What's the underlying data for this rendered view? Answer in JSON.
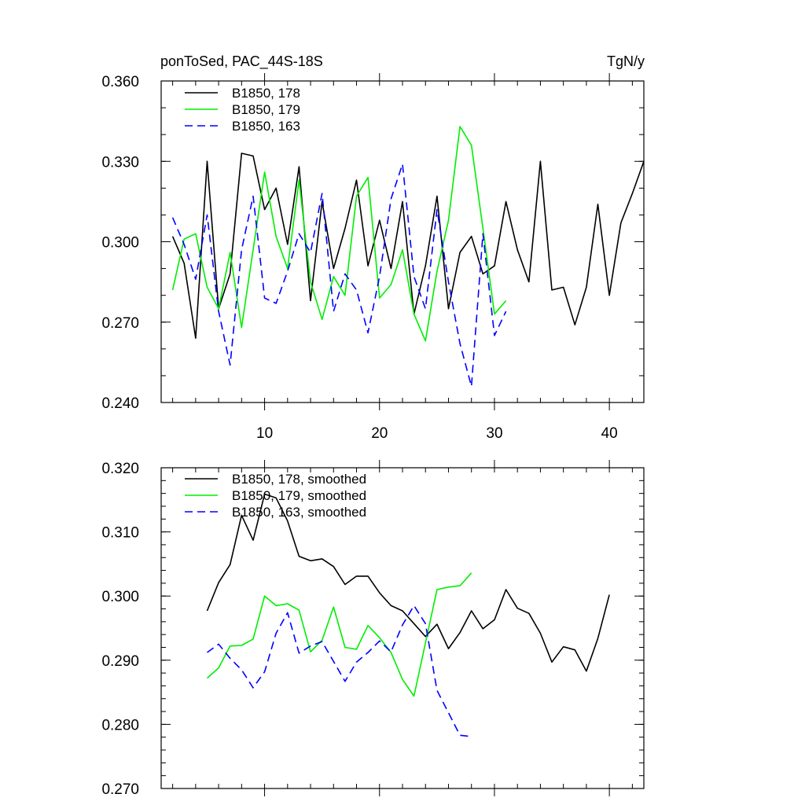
{
  "chart_data": [
    {
      "type": "line",
      "title_left": "ponToSed, PAC_44S-18S",
      "title_right": "TgN/y",
      "xlim": [
        1,
        43
      ],
      "ylim": [
        0.24,
        0.36
      ],
      "x_major_ticks": [
        10,
        20,
        30,
        40
      ],
      "x_tick_labels": [
        "10",
        "20",
        "30",
        "40"
      ],
      "x_minor_step": 2,
      "y_major_ticks": [
        0.24,
        0.27,
        0.3,
        0.33,
        0.36
      ],
      "y_tick_labels": [
        "0.240",
        "0.270",
        "0.300",
        "0.330",
        "0.360"
      ],
      "y_minor_step": 0.01,
      "legend_position": "top-left",
      "series": [
        {
          "name": "B1850, 178",
          "color": "#000000",
          "dash": "solid",
          "x": [
            2,
            3,
            4,
            5,
            6,
            7,
            8,
            9,
            10,
            11,
            12,
            13,
            14,
            15,
            16,
            17,
            18,
            19,
            20,
            21,
            22,
            23,
            24,
            25,
            26,
            27,
            28,
            29,
            30,
            31,
            32,
            33,
            34,
            35,
            36,
            37,
            38,
            39,
            40,
            41,
            42,
            43
          ],
          "values": [
            0.302,
            0.292,
            0.264,
            0.33,
            0.275,
            0.288,
            0.333,
            0.332,
            0.312,
            0.32,
            0.299,
            0.328,
            0.278,
            0.315,
            0.29,
            0.305,
            0.323,
            0.291,
            0.308,
            0.29,
            0.315,
            0.273,
            0.291,
            0.317,
            0.275,
            0.296,
            0.302,
            0.288,
            0.291,
            0.315,
            0.297,
            0.285,
            0.33,
            0.282,
            0.283,
            0.269,
            0.283,
            0.314,
            0.28,
            0.307,
            0.318,
            0.33
          ]
        },
        {
          "name": "B1850, 179",
          "color": "#00ee00",
          "dash": "solid",
          "x": [
            2,
            3,
            4,
            5,
            6,
            7,
            8,
            9,
            10,
            11,
            12,
            13,
            14,
            15,
            16,
            17,
            18,
            19,
            20,
            21,
            22,
            23,
            24,
            25,
            26,
            27,
            28,
            29,
            30,
            31
          ],
          "values": [
            0.282,
            0.301,
            0.303,
            0.283,
            0.275,
            0.296,
            0.268,
            0.297,
            0.326,
            0.302,
            0.29,
            0.323,
            0.285,
            0.271,
            0.287,
            0.28,
            0.317,
            0.324,
            0.279,
            0.284,
            0.297,
            0.273,
            0.263,
            0.289,
            0.308,
            0.343,
            0.336,
            0.305,
            0.273,
            0.278
          ]
        },
        {
          "name": "B1850, 163",
          "color": "#0000ff",
          "dash": "dashed",
          "x": [
            2,
            3,
            4,
            5,
            6,
            7,
            8,
            9,
            10,
            11,
            12,
            13,
            14,
            15,
            16,
            17,
            18,
            19,
            20,
            21,
            22,
            23,
            24,
            25,
            26,
            27,
            28,
            29,
            30,
            31
          ],
          "values": [
            0.309,
            0.299,
            0.286,
            0.31,
            0.274,
            0.254,
            0.297,
            0.317,
            0.279,
            0.277,
            0.289,
            0.303,
            0.296,
            0.318,
            0.274,
            0.288,
            0.282,
            0.266,
            0.287,
            0.316,
            0.329,
            0.287,
            0.275,
            0.312,
            0.285,
            0.262,
            0.246,
            0.303,
            0.265,
            0.274
          ]
        }
      ]
    },
    {
      "type": "line",
      "xlim": [
        1,
        43
      ],
      "ylim": [
        0.27,
        0.32
      ],
      "x_major_ticks": [
        10,
        20,
        30,
        40
      ],
      "x_minor_step": 2,
      "y_major_ticks": [
        0.27,
        0.28,
        0.29,
        0.3,
        0.31,
        0.32
      ],
      "y_tick_labels": [
        "0.270",
        "0.280",
        "0.290",
        "0.300",
        "0.310",
        "0.320"
      ],
      "y_minor_step": 0.002,
      "legend_position": "top-left",
      "series": [
        {
          "name": "B1850, 178, smoothed",
          "color": "#000000",
          "dash": "solid",
          "x": [
            5,
            6,
            7,
            8,
            9,
            10,
            11,
            12,
            13,
            14,
            15,
            16,
            17,
            18,
            19,
            20,
            21,
            22,
            23,
            24,
            25,
            26,
            27,
            28,
            29,
            30,
            31,
            32,
            33,
            34,
            35,
            36,
            37,
            38,
            39,
            40
          ],
          "values": [
            0.2977,
            0.3021,
            0.3049,
            0.3126,
            0.3087,
            0.3159,
            0.3153,
            0.3117,
            0.3062,
            0.3055,
            0.3058,
            0.3046,
            0.3018,
            0.3031,
            0.3031,
            0.3005,
            0.2985,
            0.2977,
            0.2957,
            0.2937,
            0.2956,
            0.2918,
            0.2943,
            0.2977,
            0.2949,
            0.2963,
            0.301,
            0.2981,
            0.2973,
            0.2942,
            0.2897,
            0.2921,
            0.2916,
            0.2883,
            0.2934,
            0.3002
          ]
        },
        {
          "name": "B1850, 179, smoothed",
          "color": "#00ee00",
          "dash": "solid",
          "x": [
            5,
            6,
            7,
            8,
            9,
            10,
            11,
            12,
            13,
            14,
            15,
            16,
            17,
            18,
            19,
            20,
            21,
            22,
            23,
            24,
            25,
            26,
            27,
            28
          ],
          "values": [
            0.2872,
            0.2888,
            0.2922,
            0.2923,
            0.2933,
            0.3,
            0.2985,
            0.2988,
            0.2978,
            0.2913,
            0.2931,
            0.2983,
            0.292,
            0.2917,
            0.2954,
            0.2935,
            0.2912,
            0.287,
            0.2844,
            0.2927,
            0.301,
            0.3014,
            0.3016,
            0.3036
          ]
        },
        {
          "name": "B1850, 163, smoothed",
          "color": "#0000ff",
          "dash": "dashed",
          "x": [
            5,
            6,
            7,
            8,
            9,
            10,
            11,
            12,
            13,
            14,
            15,
            16,
            17,
            18,
            19,
            20,
            21,
            22,
            23,
            24,
            25,
            26,
            27,
            28
          ],
          "values": [
            0.2912,
            0.2925,
            0.2903,
            0.2885,
            0.2857,
            0.2882,
            0.2942,
            0.2974,
            0.2911,
            0.2922,
            0.2929,
            0.2898,
            0.2867,
            0.2897,
            0.2912,
            0.293,
            0.2913,
            0.2955,
            0.2985,
            0.2957,
            0.2853,
            0.2818,
            0.2783,
            0.2781
          ]
        }
      ]
    }
  ]
}
